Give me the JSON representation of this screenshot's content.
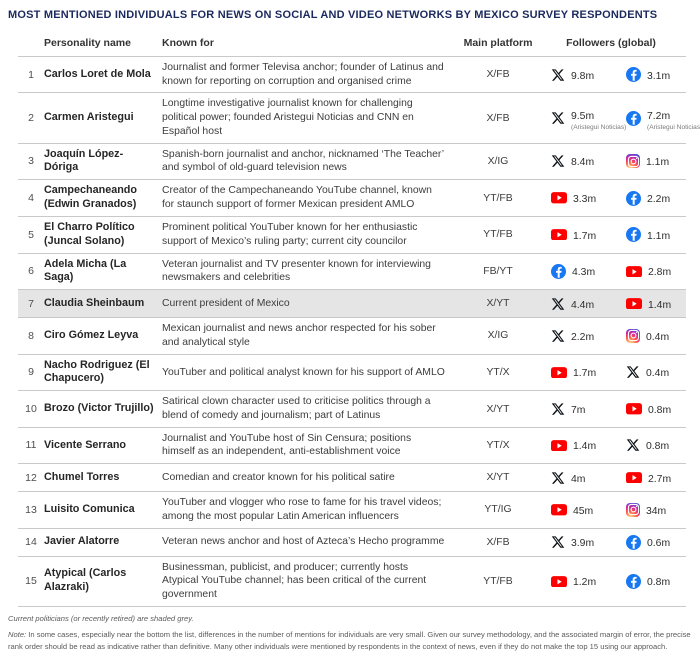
{
  "title": "MOST MENTIONED INDIVIDUALS FOR NEWS ON SOCIAL AND VIDEO NETWORKS BY MEXICO SURVEY RESPONDENTS",
  "colors": {
    "title_navy": "#1b2a5e",
    "row_shade": "#e5e5e5",
    "border": "#c9c9c9",
    "x_black": "#0f1419",
    "facebook_blue": "#1877F2",
    "youtube_red": "#FF0000"
  },
  "table": {
    "headers": {
      "name": "Personality name",
      "known_for": "Known for",
      "platform": "Main platform",
      "followers": "Followers (global)"
    },
    "icon_names": {
      "x": "x-icon",
      "facebook": "facebook-icon",
      "youtube": "youtube-icon",
      "instagram": "instagram-icon"
    },
    "rows": [
      {
        "rank": "1",
        "name": "Carlos Loret de Mola",
        "known_for": "Journalist and former Televisa anchor; founder of Latinus and known for reporting on corruption and organised crime",
        "platform": "X/FB",
        "shaded": false,
        "followers": [
          {
            "network": "x",
            "value": "9.8m",
            "note": ""
          },
          {
            "network": "facebook",
            "value": "3.1m",
            "note": ""
          }
        ]
      },
      {
        "rank": "2",
        "name": "Carmen Aristegui",
        "known_for": "Longtime investigative journalist known for challenging political power; founded Aristegui Noticias and CNN en Español host",
        "platform": "X/FB",
        "shaded": false,
        "followers": [
          {
            "network": "x",
            "value": "9.5m",
            "note": "(Aristegui Noticias)"
          },
          {
            "network": "facebook",
            "value": "7.2m",
            "note": "(Aristegui Noticias)"
          }
        ]
      },
      {
        "rank": "3",
        "name": "Joaquín López-Dóriga",
        "known_for": "Spanish-born journalist and anchor, nicknamed ‘The Teacher’ and symbol of old-guard television news",
        "platform": "X/IG",
        "shaded": false,
        "followers": [
          {
            "network": "x",
            "value": "8.4m",
            "note": ""
          },
          {
            "network": "instagram",
            "value": "1.1m",
            "note": ""
          }
        ]
      },
      {
        "rank": "4",
        "name": "Campechaneando (Edwin Granados)",
        "known_for": "Creator of the Campechaneando YouTube channel, known for staunch support of former Mexican president AMLO",
        "platform": "YT/FB",
        "shaded": false,
        "followers": [
          {
            "network": "youtube",
            "value": "3.3m",
            "note": ""
          },
          {
            "network": "facebook",
            "value": "2.2m",
            "note": ""
          }
        ]
      },
      {
        "rank": "5",
        "name": "El Charro Político (Juncal Solano)",
        "known_for": "Prominent political YouTuber known for her enthusiastic support of Mexico’s ruling party; current city councilor",
        "platform": "YT/FB",
        "shaded": false,
        "followers": [
          {
            "network": "youtube",
            "value": "1.7m",
            "note": ""
          },
          {
            "network": "facebook",
            "value": "1.1m",
            "note": ""
          }
        ]
      },
      {
        "rank": "6",
        "name": "Adela Micha (La Saga)",
        "known_for": "Veteran journalist and TV presenter known for interviewing newsmakers and celebrities",
        "platform": "FB/YT",
        "shaded": false,
        "followers": [
          {
            "network": "facebook",
            "value": "4.3m",
            "note": ""
          },
          {
            "network": "youtube",
            "value": "2.8m",
            "note": ""
          }
        ]
      },
      {
        "rank": "7",
        "name": "Claudia Sheinbaum",
        "known_for": "Current president of Mexico",
        "platform": "X/YT",
        "shaded": true,
        "followers": [
          {
            "network": "x",
            "value": "4.4m",
            "note": ""
          },
          {
            "network": "youtube",
            "value": "1.4m",
            "note": ""
          }
        ]
      },
      {
        "rank": "8",
        "name": "Ciro Gómez Leyva",
        "known_for": "Mexican journalist and news anchor respected for his sober and analytical style",
        "platform": "X/IG",
        "shaded": false,
        "followers": [
          {
            "network": "x",
            "value": "2.2m",
            "note": ""
          },
          {
            "network": "instagram",
            "value": "0.4m",
            "note": ""
          }
        ]
      },
      {
        "rank": "9",
        "name": "Nacho Rodriguez (El Chapucero)",
        "known_for": "YouTuber and political analyst known for his support of AMLO",
        "platform": "YT/X",
        "shaded": false,
        "followers": [
          {
            "network": "youtube",
            "value": "1.7m",
            "note": ""
          },
          {
            "network": "x",
            "value": "0.4m",
            "note": ""
          }
        ]
      },
      {
        "rank": "10",
        "name": "Brozo (Victor Trujillo)",
        "known_for": "Satirical clown character used to criticise politics through a blend of comedy and journalism; part of Latinus",
        "platform": "X/YT",
        "shaded": false,
        "followers": [
          {
            "network": "x",
            "value": "7m",
            "note": ""
          },
          {
            "network": "youtube",
            "value": "0.8m",
            "note": ""
          }
        ]
      },
      {
        "rank": "11",
        "name": "Vicente Serrano",
        "known_for": "Journalist and YouTube host of Sin Censura; positions himself as an independent, anti-establishment voice",
        "platform": "YT/X",
        "shaded": false,
        "followers": [
          {
            "network": "youtube",
            "value": "1.4m",
            "note": ""
          },
          {
            "network": "x",
            "value": "0.8m",
            "note": ""
          }
        ]
      },
      {
        "rank": "12",
        "name": "Chumel Torres",
        "known_for": "Comedian and creator known for his political satire",
        "platform": "X/YT",
        "shaded": false,
        "followers": [
          {
            "network": "x",
            "value": "4m",
            "note": ""
          },
          {
            "network": "youtube",
            "value": "2.7m",
            "note": ""
          }
        ]
      },
      {
        "rank": "13",
        "name": "Luisito Comunica",
        "known_for": "YouTuber and vlogger who rose to fame for his travel videos; among the most popular Latin American influencers",
        "platform": "YT/IG",
        "shaded": false,
        "followers": [
          {
            "network": "youtube",
            "value": "45m",
            "note": ""
          },
          {
            "network": "instagram",
            "value": "34m",
            "note": ""
          }
        ]
      },
      {
        "rank": "14",
        "name": "Javier Alatorre",
        "known_for": "Veteran news anchor and host of Azteca’s Hecho programme",
        "platform": "X/FB",
        "shaded": false,
        "followers": [
          {
            "network": "x",
            "value": "3.9m",
            "note": ""
          },
          {
            "network": "facebook",
            "value": "0.6m",
            "note": ""
          }
        ]
      },
      {
        "rank": "15",
        "name": "Atypical (Carlos Alazraki)",
        "known_for": "Businessman, publicist, and producer; currently hosts Atypical YouTube channel; has been critical of the current government",
        "platform": "YT/FB",
        "shaded": false,
        "followers": [
          {
            "network": "youtube",
            "value": "1.2m",
            "note": ""
          },
          {
            "network": "facebook",
            "value": "0.8m",
            "note": ""
          }
        ]
      }
    ]
  },
  "footnotes": {
    "shading": "Current politicians (or recently retired) are shaded grey.",
    "note_label": "Note:",
    "note_text": " In some cases, especially near the bottom the list, differences in the number of mentions for individuals are very small. Given our survey methodology, and the associated margin of error, the precise rank order should be read as indicative rather than definitive. Many other individuals were mentioned by respondents in the context of news, even if they do not make the top 15 using our approach."
  }
}
